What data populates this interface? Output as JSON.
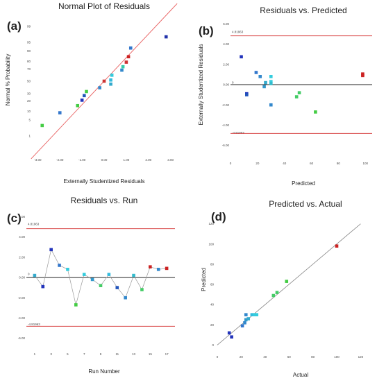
{
  "figure": {
    "panels": [
      {
        "id": "a",
        "label": "(a)",
        "title": "Normal Plot of Residuals"
      },
      {
        "id": "b",
        "label": "(b)",
        "title": "Residuals vs. Predicted"
      },
      {
        "id": "c",
        "label": "(c)",
        "title": "Residuals vs. Run"
      },
      {
        "id": "d",
        "label": "(d)",
        "title": "Predicted vs. Actual"
      }
    ]
  },
  "chart_data": [
    {
      "type": "scatter",
      "id": "a",
      "title": "Normal Plot of Residuals",
      "xlabel": "Externally Studentized Residuals",
      "ylabel": "Normal % Probability",
      "xlim": [
        -3.2,
        3.2
      ],
      "xticks": [
        "-3.00",
        "-2.00",
        "-1.00",
        "0.00",
        "1.00",
        "2.00",
        "3.00"
      ],
      "xtick_values": [
        -3,
        -2,
        -1,
        0,
        1,
        2,
        3
      ],
      "yticks": [
        "1",
        "5",
        "10",
        "20",
        "30",
        "50",
        "70",
        "80",
        "90",
        "95",
        "99"
      ],
      "ytick_values": [
        1,
        5,
        10,
        20,
        30,
        50,
        70,
        80,
        90,
        95,
        99
      ],
      "fit_line": {
        "x1": -3.3,
        "x2": 3.3
      },
      "points": [
        {
          "x": -2.8,
          "p": 3.0,
          "color": "#44cc44"
        },
        {
          "x": -2.0,
          "p": 9.0,
          "color": "#3377cc"
        },
        {
          "x": -1.2,
          "p": 15.0,
          "color": "#44cc44"
        },
        {
          "x": -1.0,
          "p": 21.0,
          "color": "#2233bb"
        },
        {
          "x": -0.9,
          "p": 27.0,
          "color": "#2255bb"
        },
        {
          "x": -0.8,
          "p": 33.0,
          "color": "#44cc44"
        },
        {
          "x": -0.2,
          "p": 39.0,
          "color": "#3388cc"
        },
        {
          "x": 0.0,
          "p": 50.0,
          "color": "#cc3333"
        },
        {
          "x": 0.3,
          "p": 45.0,
          "color": "#33aacc"
        },
        {
          "x": 0.3,
          "p": 52.0,
          "color": "#33bbdd"
        },
        {
          "x": 0.35,
          "p": 60.0,
          "color": "#33ccdd"
        },
        {
          "x": 0.8,
          "p": 68.0,
          "color": "#3388cc"
        },
        {
          "x": 0.85,
          "p": 73.0,
          "color": "#33ccaa"
        },
        {
          "x": 1.0,
          "p": 79.0,
          "color": "#cc3333"
        },
        {
          "x": 1.1,
          "p": 85.0,
          "color": "#cc2222"
        },
        {
          "x": 1.2,
          "p": 92.0,
          "color": "#3377cc"
        },
        {
          "x": 2.8,
          "p": 97.0,
          "color": "#2233aa"
        }
      ]
    },
    {
      "type": "scatter",
      "id": "b",
      "title": "Residuals vs. Predicted",
      "xlabel": "Predicted",
      "ylabel": "Externally Studentized Residuals",
      "xlim": [
        0,
        105
      ],
      "ylim": [
        -6.3,
        6.3
      ],
      "xticks": [
        "0",
        "20",
        "40",
        "60",
        "80",
        "100"
      ],
      "xtick_values": [
        0,
        20,
        40,
        60,
        80,
        100
      ],
      "yticks": [
        "-6.00",
        "-4.00",
        "-2.00",
        "0.00",
        "2.00",
        "4.00",
        "6.00"
      ],
      "ytick_values": [
        -6,
        -4,
        -2,
        0,
        2,
        4,
        6
      ],
      "limit_upper": 4.81963,
      "limit_lower": -4.81963,
      "limit_upper_label": "4.81963",
      "limit_lower_label": "-4.81963",
      "zero_label": "0",
      "points": [
        {
          "x": 8,
          "y": 2.75,
          "color": "#2233bb"
        },
        {
          "x": 12,
          "y": -0.9,
          "color": "#2233bb"
        },
        {
          "x": 12,
          "y": -1.0,
          "color": "#2255bb"
        },
        {
          "x": 19,
          "y": 1.2,
          "color": "#3377cc"
        },
        {
          "x": 22,
          "y": 0.8,
          "color": "#3388cc"
        },
        {
          "x": 25,
          "y": -0.2,
          "color": "#3399cc"
        },
        {
          "x": 26,
          "y": 0.2,
          "color": "#33aacc"
        },
        {
          "x": 30,
          "y": 0.8,
          "color": "#33ccdd"
        },
        {
          "x": 30,
          "y": 0.3,
          "color": "#33ccdd"
        },
        {
          "x": 30,
          "y": 0.1,
          "color": "#33bbcc"
        },
        {
          "x": 30,
          "y": -2.0,
          "color": "#3388cc"
        },
        {
          "x": 49,
          "y": -1.2,
          "color": "#44cc66"
        },
        {
          "x": 51,
          "y": -0.8,
          "color": "#44cc66"
        },
        {
          "x": 63,
          "y": -2.7,
          "color": "#44cc44"
        },
        {
          "x": 98,
          "y": 1.05,
          "color": "#cc2222"
        },
        {
          "x": 98,
          "y": 0.9,
          "color": "#cc2222"
        }
      ]
    },
    {
      "type": "line",
      "id": "c",
      "title": "Residuals vs. Run",
      "xlabel": "Run Number",
      "ylabel": "",
      "xlim": [
        0,
        18
      ],
      "ylim": [
        -6.3,
        6.3
      ],
      "xticks": [
        "1",
        "3",
        "5",
        "7",
        "9",
        "11",
        "13",
        "15",
        "17"
      ],
      "xtick_values": [
        1,
        3,
        5,
        7,
        9,
        11,
        13,
        15,
        17
      ],
      "yticks": [
        "-6.00",
        "-4.00",
        "-2.00",
        "0.00",
        "2.00",
        "4.00",
        "6.00"
      ],
      "ytick_values": [
        -6,
        -4,
        -2,
        0,
        2,
        4,
        6
      ],
      "limit_upper": 4.81963,
      "limit_lower": -4.81963,
      "limit_upper_label": "4.81963",
      "limit_lower_label": "-4.81963",
      "zero_label": "0",
      "points": [
        {
          "x": 1,
          "y": 0.2,
          "color": "#33aacc"
        },
        {
          "x": 2,
          "y": -0.9,
          "color": "#2233bb"
        },
        {
          "x": 3,
          "y": 2.75,
          "color": "#2233bb"
        },
        {
          "x": 4,
          "y": 1.2,
          "color": "#3377cc"
        },
        {
          "x": 5,
          "y": 0.8,
          "color": "#33ccdd"
        },
        {
          "x": 6,
          "y": -2.7,
          "color": "#44cc44"
        },
        {
          "x": 7,
          "y": 0.3,
          "color": "#33ccdd"
        },
        {
          "x": 8,
          "y": -0.2,
          "color": "#3399cc"
        },
        {
          "x": 9,
          "y": -0.8,
          "color": "#44cc66"
        },
        {
          "x": 10,
          "y": 0.3,
          "color": "#33bbdd"
        },
        {
          "x": 11,
          "y": -1.0,
          "color": "#2255bb"
        },
        {
          "x": 12,
          "y": -2.0,
          "color": "#3388cc"
        },
        {
          "x": 13,
          "y": 0.2,
          "color": "#33bbcc"
        },
        {
          "x": 14,
          "y": -1.2,
          "color": "#44cc66"
        },
        {
          "x": 15,
          "y": 1.05,
          "color": "#cc2222"
        },
        {
          "x": 16,
          "y": 0.8,
          "color": "#3388cc"
        },
        {
          "x": 17,
          "y": 0.9,
          "color": "#cc2222"
        }
      ]
    },
    {
      "type": "scatter",
      "id": "d",
      "title": "Predicted vs. Actual",
      "xlabel": "Actual",
      "ylabel": "Predicted",
      "xlim": [
        0,
        125
      ],
      "ylim": [
        -8,
        128
      ],
      "xticks": [
        "0",
        "20",
        "40",
        "60",
        "80",
        "100",
        "120"
      ],
      "xtick_values": [
        0,
        20,
        40,
        60,
        80,
        100,
        120
      ],
      "yticks": [
        "0",
        "20",
        "40",
        "60",
        "80",
        "100",
        "120"
      ],
      "ytick_values": [
        0,
        20,
        40,
        60,
        80,
        100,
        120
      ],
      "fit_line": {
        "x1": 0,
        "x2": 120
      },
      "points": [
        {
          "x": 10,
          "y": 12,
          "color": "#2233bb"
        },
        {
          "x": 12,
          "y": 8,
          "color": "#2233bb"
        },
        {
          "x": 21,
          "y": 19,
          "color": "#3377cc"
        },
        {
          "x": 23,
          "y": 22,
          "color": "#3388cc"
        },
        {
          "x": 24,
          "y": 25,
          "color": "#3399cc"
        },
        {
          "x": 26,
          "y": 26,
          "color": "#33aacc"
        },
        {
          "x": 24,
          "y": 30,
          "color": "#3388cc"
        },
        {
          "x": 29,
          "y": 30,
          "color": "#33bbdd"
        },
        {
          "x": 31,
          "y": 30,
          "color": "#33ccdd"
        },
        {
          "x": 33,
          "y": 30,
          "color": "#33ccdd"
        },
        {
          "x": 47,
          "y": 49,
          "color": "#44cc66"
        },
        {
          "x": 50,
          "y": 52,
          "color": "#44cc66"
        },
        {
          "x": 58,
          "y": 63,
          "color": "#44cc44"
        },
        {
          "x": 100,
          "y": 98,
          "color": "#cc2222"
        }
      ]
    }
  ]
}
